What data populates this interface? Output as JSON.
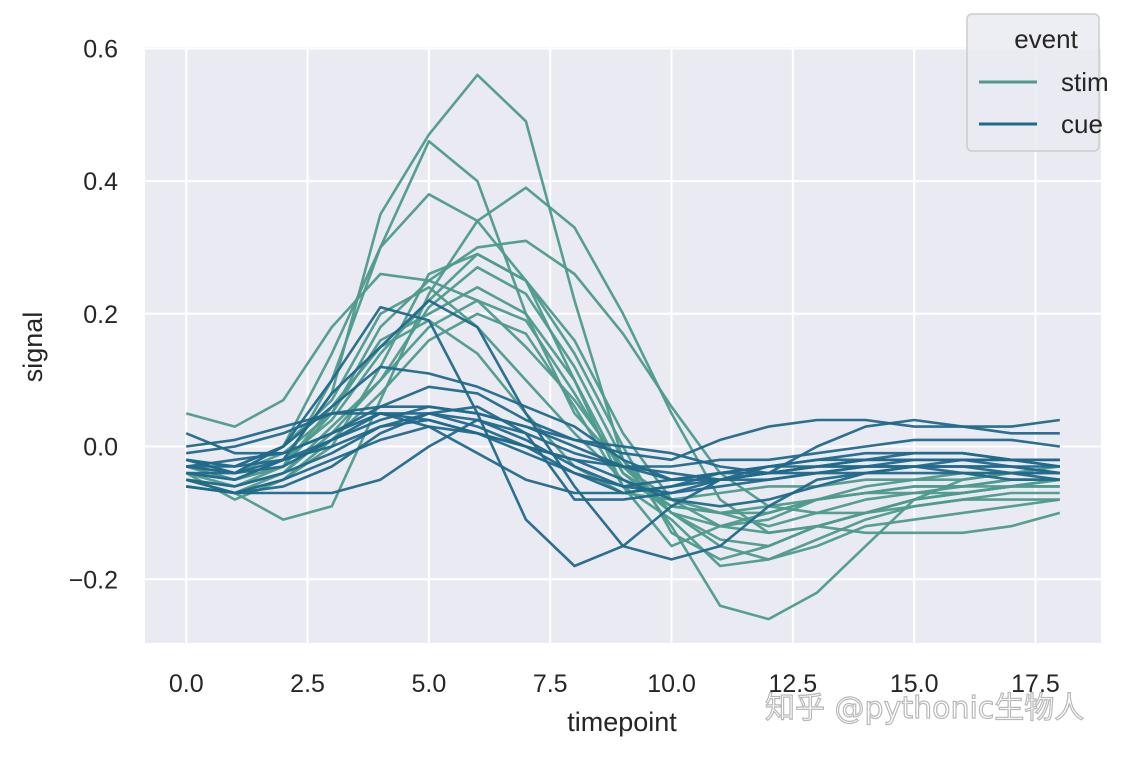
{
  "chart_data": {
    "type": "line",
    "title": "",
    "xlabel": "timepoint",
    "ylabel": "signal",
    "xlim": [
      -0.85,
      18.85
    ],
    "ylim": [
      -0.296,
      0.602
    ],
    "xticks": [
      0.0,
      2.5,
      5.0,
      7.5,
      10.0,
      12.5,
      15.0,
      17.5
    ],
    "xtick_labels": [
      "0.0",
      "2.5",
      "5.0",
      "7.5",
      "10.0",
      "12.5",
      "15.0",
      "17.5"
    ],
    "yticks": [
      -0.2,
      0.0,
      0.2,
      0.4,
      0.6
    ],
    "ytick_labels": [
      "−0.2",
      "0.0",
      "0.2",
      "0.4",
      "0.6"
    ],
    "grid": true,
    "background": "#eaeaf2",
    "legend": {
      "title": "event",
      "position": "upper right",
      "entries": [
        {
          "label": "stim",
          "color": "#4e9a8c"
        },
        {
          "label": "cue",
          "color": "#21698a"
        }
      ]
    },
    "x": [
      0,
      1,
      2,
      3,
      4,
      5,
      6,
      7,
      8,
      9,
      10,
      11,
      12,
      13,
      14,
      15,
      16,
      17,
      18
    ],
    "series": [
      {
        "name": "stim",
        "values": [
          -0.03,
          -0.05,
          -0.02,
          0.08,
          0.35,
          0.47,
          0.56,
          0.49,
          0.22,
          -0.02,
          -0.1,
          -0.12,
          -0.11,
          -0.08,
          -0.07,
          -0.06,
          -0.06,
          -0.05,
          -0.05
        ]
      },
      {
        "name": "stim",
        "values": [
          -0.04,
          -0.06,
          -0.03,
          0.1,
          0.3,
          0.46,
          0.4,
          0.2,
          0.05,
          -0.03,
          -0.08,
          -0.1,
          -0.12,
          -0.1,
          -0.08,
          -0.07,
          -0.07,
          -0.06,
          -0.06
        ]
      },
      {
        "name": "stim",
        "values": [
          -0.03,
          -0.04,
          0.0,
          0.14,
          0.3,
          0.38,
          0.34,
          0.25,
          0.1,
          -0.04,
          -0.1,
          -0.14,
          -0.15,
          -0.12,
          -0.1,
          -0.08,
          -0.07,
          -0.06,
          -0.05
        ]
      },
      {
        "name": "stim",
        "values": [
          -0.05,
          -0.07,
          -0.11,
          -0.09,
          0.07,
          0.23,
          0.34,
          0.39,
          0.33,
          0.2,
          0.05,
          -0.08,
          -0.13,
          -0.12,
          -0.1,
          -0.08,
          -0.07,
          -0.06,
          -0.05
        ]
      },
      {
        "name": "stim",
        "values": [
          -0.04,
          -0.05,
          -0.03,
          0.05,
          0.18,
          0.25,
          0.3,
          0.31,
          0.26,
          0.17,
          0.06,
          -0.04,
          -0.09,
          -0.1,
          -0.1,
          -0.09,
          -0.08,
          -0.07,
          -0.07
        ]
      },
      {
        "name": "stim",
        "values": [
          0.05,
          0.03,
          0.07,
          0.18,
          0.26,
          0.25,
          0.22,
          0.15,
          0.07,
          -0.03,
          -0.1,
          -0.15,
          -0.17,
          -0.15,
          -0.12,
          -0.11,
          -0.1,
          -0.09,
          -0.08
        ]
      },
      {
        "name": "stim",
        "values": [
          -0.04,
          -0.08,
          -0.05,
          0.0,
          0.12,
          0.26,
          0.29,
          0.25,
          0.16,
          0.02,
          -0.08,
          -0.12,
          -0.13,
          -0.12,
          -0.13,
          -0.13,
          -0.13,
          -0.12,
          -0.1
        ]
      },
      {
        "name": "stim",
        "values": [
          -0.05,
          -0.06,
          -0.04,
          0.02,
          0.1,
          0.21,
          0.27,
          0.23,
          0.12,
          -0.02,
          -0.12,
          -0.24,
          -0.26,
          -0.22,
          -0.15,
          -0.08,
          -0.05,
          -0.04,
          -0.04
        ]
      },
      {
        "name": "stim",
        "values": [
          -0.03,
          -0.05,
          -0.02,
          0.04,
          0.14,
          0.22,
          0.29,
          0.25,
          0.14,
          0.0,
          -0.13,
          -0.17,
          -0.15,
          -0.12,
          -0.1,
          -0.08,
          -0.07,
          -0.06,
          -0.06
        ]
      },
      {
        "name": "stim",
        "values": [
          -0.02,
          -0.04,
          -0.01,
          0.05,
          0.16,
          0.2,
          0.24,
          0.2,
          0.1,
          -0.06,
          -0.15,
          -0.12,
          -0.1,
          -0.08,
          -0.06,
          -0.05,
          -0.04,
          -0.04,
          -0.03
        ]
      },
      {
        "name": "stim",
        "values": [
          -0.05,
          -0.07,
          -0.04,
          0.03,
          0.1,
          0.18,
          0.22,
          0.19,
          0.08,
          -0.04,
          -0.09,
          -0.1,
          -0.09,
          -0.08,
          -0.07,
          -0.06,
          -0.06,
          -0.05,
          -0.05
        ]
      },
      {
        "name": "stim",
        "values": [
          -0.04,
          -0.05,
          -0.03,
          0.06,
          0.15,
          0.19,
          0.14,
          0.05,
          -0.03,
          -0.07,
          -0.08,
          -0.07,
          -0.06,
          -0.06,
          -0.05,
          -0.05,
          -0.05,
          -0.04,
          -0.04
        ]
      },
      {
        "name": "stim",
        "values": [
          -0.02,
          -0.03,
          0.0,
          0.07,
          0.2,
          0.24,
          0.18,
          0.1,
          0.02,
          -0.05,
          -0.09,
          -0.1,
          -0.1,
          -0.08,
          -0.07,
          -0.07,
          -0.06,
          -0.06,
          -0.05
        ]
      },
      {
        "name": "stim",
        "values": [
          -0.06,
          -0.07,
          -0.05,
          0.01,
          0.08,
          0.16,
          0.2,
          0.17,
          0.06,
          -0.06,
          -0.11,
          -0.18,
          -0.17,
          -0.14,
          -0.11,
          -0.09,
          -0.08,
          -0.08,
          -0.08
        ]
      },
      {
        "name": "cue",
        "values": [
          -0.02,
          -0.04,
          0.0,
          0.1,
          0.21,
          0.19,
          0.05,
          -0.11,
          -0.18,
          -0.15,
          -0.09,
          -0.05,
          -0.04,
          -0.03,
          -0.03,
          -0.02,
          -0.02,
          -0.02,
          -0.02
        ]
      },
      {
        "name": "cue",
        "values": [
          -0.04,
          -0.05,
          -0.02,
          0.08,
          0.15,
          0.22,
          0.18,
          0.05,
          -0.06,
          -0.15,
          -0.17,
          -0.15,
          -0.09,
          -0.05,
          -0.04,
          -0.03,
          -0.03,
          -0.03,
          -0.03
        ]
      },
      {
        "name": "cue",
        "values": [
          -0.03,
          -0.03,
          0.0,
          0.06,
          0.12,
          0.11,
          0.09,
          0.06,
          0.03,
          -0.02,
          -0.05,
          -0.04,
          -0.04,
          -0.03,
          -0.02,
          -0.02,
          -0.02,
          -0.02,
          -0.02
        ]
      },
      {
        "name": "cue",
        "values": [
          0.02,
          -0.01,
          -0.01,
          0.02,
          0.06,
          0.09,
          0.08,
          0.04,
          0.01,
          -0.01,
          -0.02,
          0.01,
          0.03,
          0.04,
          0.04,
          0.03,
          0.03,
          0.02,
          0.02
        ]
      },
      {
        "name": "cue",
        "values": [
          -0.01,
          0.0,
          0.02,
          0.05,
          0.06,
          0.06,
          0.05,
          0.03,
          0.01,
          0.0,
          -0.01,
          -0.03,
          -0.04,
          0.0,
          0.03,
          0.04,
          0.03,
          0.03,
          0.04
        ]
      },
      {
        "name": "cue",
        "values": [
          -0.06,
          -0.07,
          -0.07,
          -0.07,
          -0.05,
          0.0,
          0.04,
          0.02,
          -0.01,
          -0.03,
          -0.04,
          -0.05,
          -0.05,
          -0.04,
          -0.04,
          -0.04,
          -0.04,
          -0.04,
          -0.04
        ]
      },
      {
        "name": "cue",
        "values": [
          -0.05,
          -0.07,
          -0.06,
          -0.03,
          0.02,
          0.05,
          0.04,
          0.01,
          -0.03,
          -0.06,
          -0.05,
          -0.04,
          -0.03,
          -0.02,
          -0.02,
          -0.01,
          -0.01,
          -0.02,
          -0.02
        ]
      },
      {
        "name": "cue",
        "values": [
          -0.04,
          -0.04,
          -0.03,
          0.01,
          0.04,
          0.06,
          0.05,
          0.03,
          0.0,
          -0.03,
          -0.05,
          -0.05,
          -0.04,
          -0.04,
          -0.03,
          -0.03,
          -0.04,
          -0.05,
          -0.05
        ]
      },
      {
        "name": "cue",
        "values": [
          -0.03,
          -0.02,
          -0.01,
          0.02,
          0.05,
          0.05,
          0.03,
          0.0,
          -0.04,
          -0.07,
          -0.06,
          -0.05,
          -0.04,
          -0.03,
          -0.02,
          -0.02,
          -0.02,
          -0.03,
          -0.04
        ]
      },
      {
        "name": "cue",
        "values": [
          -0.05,
          -0.06,
          -0.04,
          -0.01,
          0.03,
          0.04,
          0.02,
          -0.01,
          -0.04,
          -0.06,
          -0.07,
          -0.06,
          -0.05,
          -0.04,
          -0.03,
          -0.03,
          -0.03,
          -0.03,
          -0.04
        ]
      },
      {
        "name": "cue",
        "values": [
          -0.02,
          -0.03,
          -0.02,
          0.01,
          0.05,
          0.03,
          -0.01,
          -0.05,
          -0.07,
          -0.07,
          -0.06,
          -0.04,
          -0.03,
          -0.03,
          -0.03,
          -0.03,
          -0.03,
          -0.04,
          -0.05
        ]
      },
      {
        "name": "cue",
        "values": [
          -0.06,
          -0.07,
          -0.05,
          -0.02,
          0.01,
          0.03,
          0.02,
          0.0,
          -0.02,
          -0.05,
          -0.08,
          -0.09,
          -0.08,
          -0.06,
          -0.04,
          -0.03,
          -0.02,
          -0.02,
          -0.03
        ]
      },
      {
        "name": "cue",
        "values": [
          0.0,
          0.01,
          0.03,
          0.05,
          0.05,
          0.04,
          0.02,
          0.0,
          -0.02,
          -0.03,
          -0.03,
          -0.02,
          -0.02,
          -0.01,
          0.0,
          0.01,
          0.01,
          0.01,
          0.0
        ]
      },
      {
        "name": "cue",
        "values": [
          -0.03,
          -0.04,
          -0.02,
          0.0,
          0.03,
          0.05,
          0.06,
          0.02,
          -0.08,
          -0.08,
          -0.07,
          -0.05,
          -0.03,
          -0.02,
          -0.01,
          -0.01,
          -0.01,
          -0.02,
          -0.03
        ]
      }
    ]
  },
  "watermark": "知乎 @pythonic生物人"
}
